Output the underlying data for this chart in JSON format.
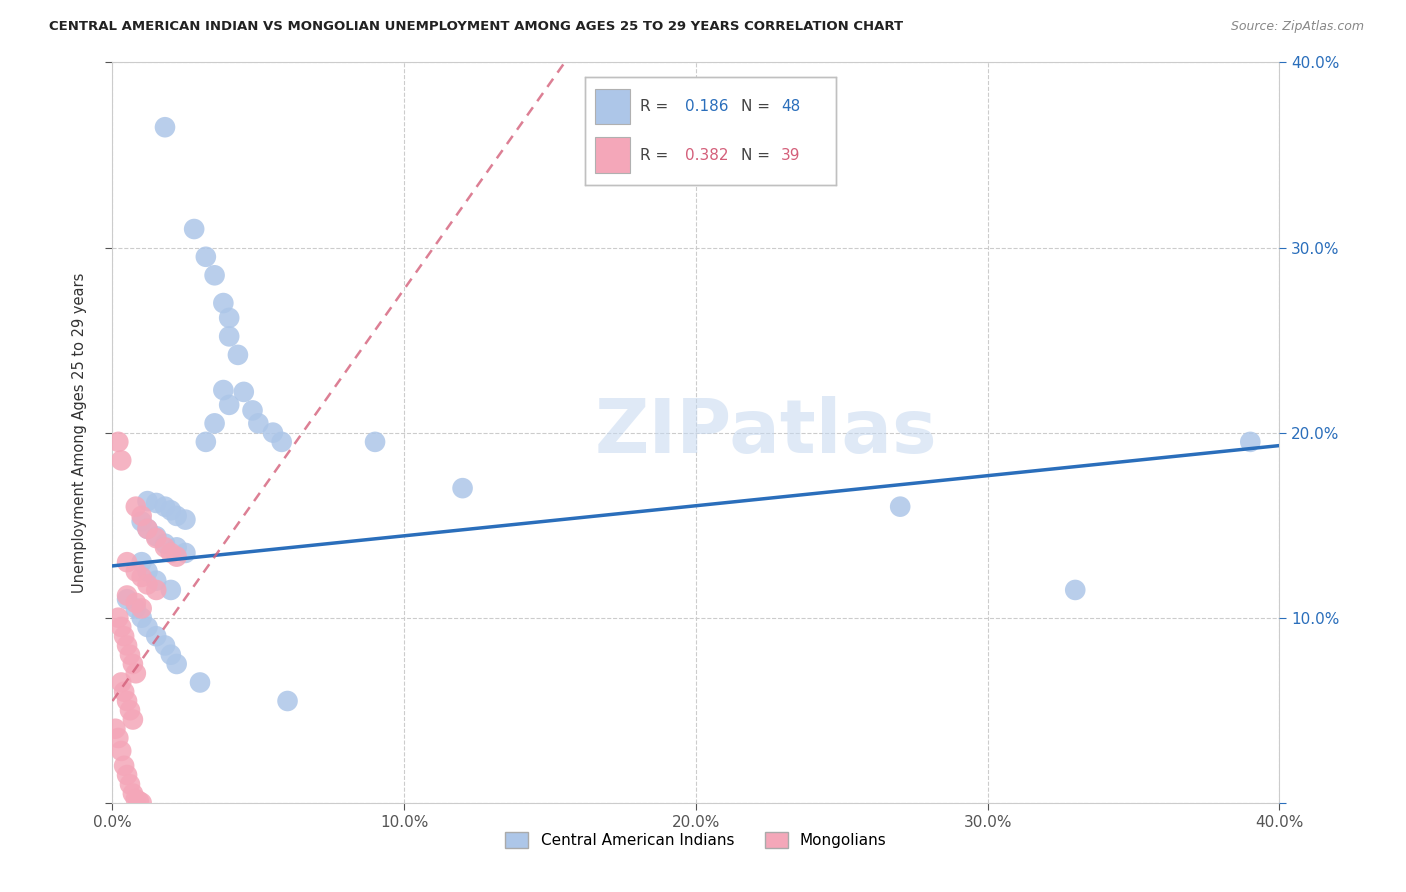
{
  "title": "CENTRAL AMERICAN INDIAN VS MONGOLIAN UNEMPLOYMENT AMONG AGES 25 TO 29 YEARS CORRELATION CHART",
  "source": "Source: ZipAtlas.com",
  "ylabel": "Unemployment Among Ages 25 to 29 years",
  "xlim": [
    0.0,
    0.4
  ],
  "ylim": [
    0.0,
    0.4
  ],
  "legend_label1": "Central American Indians",
  "legend_label2": "Mongolians",
  "R1": 0.186,
  "N1": 48,
  "R2": 0.382,
  "N2": 39,
  "color1": "#adc6e8",
  "color2": "#f4a7b9",
  "line_color1": "#2a6ebb",
  "line_color2": "#d45f7a",
  "bg_color": "#ffffff",
  "blue_line_x": [
    0.0,
    0.4
  ],
  "blue_line_y": [
    0.128,
    0.193
  ],
  "pink_line_x": [
    0.0,
    0.155
  ],
  "pink_line_y": [
    0.055,
    0.4
  ],
  "blue_dots": [
    [
      0.018,
      0.365
    ],
    [
      0.028,
      0.31
    ],
    [
      0.032,
      0.295
    ],
    [
      0.035,
      0.285
    ],
    [
      0.038,
      0.27
    ],
    [
      0.04,
      0.262
    ],
    [
      0.04,
      0.252
    ],
    [
      0.043,
      0.242
    ],
    [
      0.045,
      0.222
    ],
    [
      0.048,
      0.212
    ],
    [
      0.05,
      0.205
    ],
    [
      0.055,
      0.2
    ],
    [
      0.058,
      0.195
    ],
    [
      0.032,
      0.195
    ],
    [
      0.035,
      0.205
    ],
    [
      0.04,
      0.215
    ],
    [
      0.038,
      0.223
    ],
    [
      0.09,
      0.195
    ],
    [
      0.12,
      0.17
    ],
    [
      0.012,
      0.163
    ],
    [
      0.015,
      0.162
    ],
    [
      0.018,
      0.16
    ],
    [
      0.02,
      0.158
    ],
    [
      0.022,
      0.155
    ],
    [
      0.025,
      0.153
    ],
    [
      0.01,
      0.152
    ],
    [
      0.012,
      0.148
    ],
    [
      0.015,
      0.144
    ],
    [
      0.018,
      0.14
    ],
    [
      0.022,
      0.138
    ],
    [
      0.025,
      0.135
    ],
    [
      0.01,
      0.13
    ],
    [
      0.012,
      0.125
    ],
    [
      0.015,
      0.12
    ],
    [
      0.02,
      0.115
    ],
    [
      0.005,
      0.11
    ],
    [
      0.008,
      0.105
    ],
    [
      0.01,
      0.1
    ],
    [
      0.012,
      0.095
    ],
    [
      0.015,
      0.09
    ],
    [
      0.018,
      0.085
    ],
    [
      0.02,
      0.08
    ],
    [
      0.022,
      0.075
    ],
    [
      0.03,
      0.065
    ],
    [
      0.06,
      0.055
    ],
    [
      0.27,
      0.16
    ],
    [
      0.33,
      0.115
    ],
    [
      0.39,
      0.195
    ]
  ],
  "pink_dots": [
    [
      0.002,
      0.195
    ],
    [
      0.003,
      0.185
    ],
    [
      0.008,
      0.16
    ],
    [
      0.01,
      0.155
    ],
    [
      0.012,
      0.148
    ],
    [
      0.015,
      0.143
    ],
    [
      0.018,
      0.138
    ],
    [
      0.02,
      0.135
    ],
    [
      0.022,
      0.133
    ],
    [
      0.005,
      0.13
    ],
    [
      0.008,
      0.125
    ],
    [
      0.01,
      0.122
    ],
    [
      0.012,
      0.118
    ],
    [
      0.015,
      0.115
    ],
    [
      0.005,
      0.112
    ],
    [
      0.008,
      0.108
    ],
    [
      0.01,
      0.105
    ],
    [
      0.002,
      0.1
    ],
    [
      0.003,
      0.095
    ],
    [
      0.004,
      0.09
    ],
    [
      0.005,
      0.085
    ],
    [
      0.006,
      0.08
    ],
    [
      0.007,
      0.075
    ],
    [
      0.008,
      0.07
    ],
    [
      0.003,
      0.065
    ],
    [
      0.004,
      0.06
    ],
    [
      0.005,
      0.055
    ],
    [
      0.006,
      0.05
    ],
    [
      0.007,
      0.045
    ],
    [
      0.001,
      0.04
    ],
    [
      0.002,
      0.035
    ],
    [
      0.003,
      0.028
    ],
    [
      0.004,
      0.02
    ],
    [
      0.005,
      0.015
    ],
    [
      0.006,
      0.01
    ],
    [
      0.007,
      0.005
    ],
    [
      0.008,
      0.002
    ],
    [
      0.009,
      0.001
    ],
    [
      0.01,
      0.0
    ]
  ]
}
